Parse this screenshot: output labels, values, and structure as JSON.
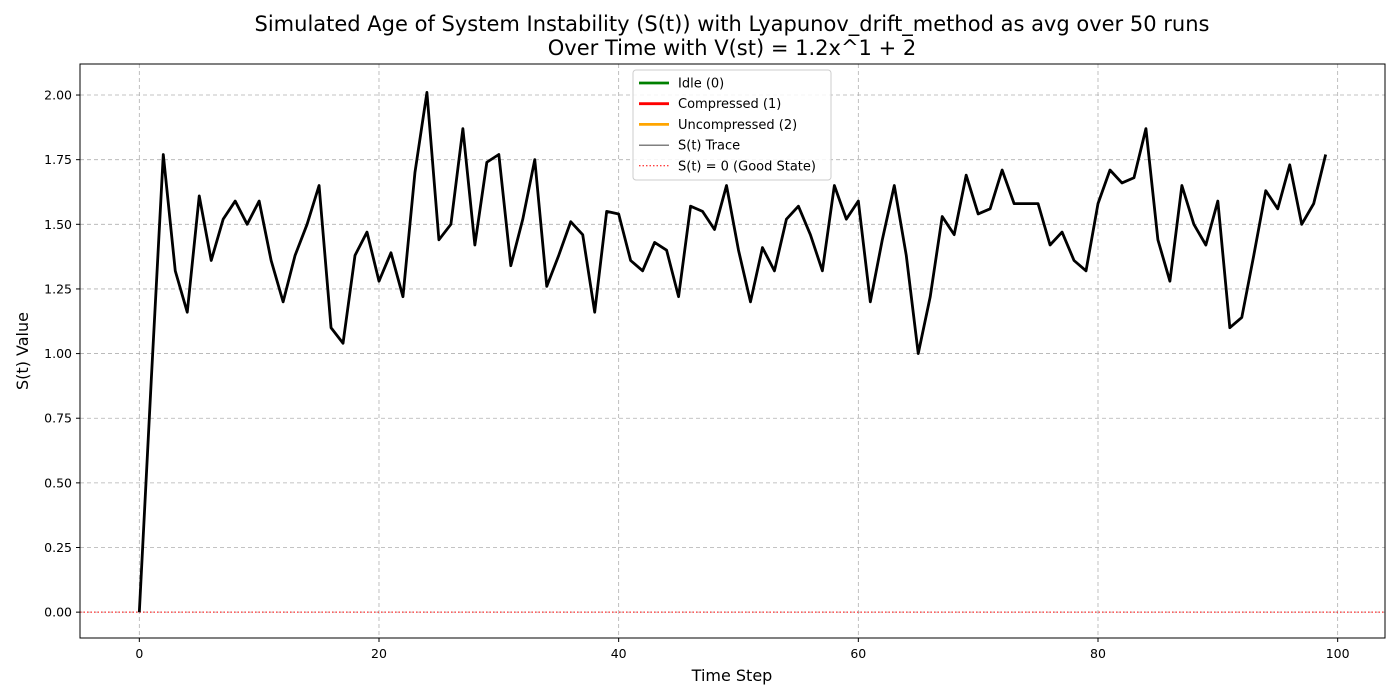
{
  "chart_data": {
    "type": "line",
    "title_line1": "Simulated Age of System Instability (S(t)) with Lyapunov_drift_method as avg over 50 runs",
    "title_line2": "Over Time with V(st) = 1.2x^1 + 2",
    "xlabel": "Time Step",
    "ylabel": "S(t) Value",
    "xlim": [
      -4.95,
      103.95
    ],
    "ylim": [
      -0.1,
      2.12
    ],
    "xticks": [
      0,
      20,
      40,
      60,
      80,
      100
    ],
    "xtick_labels": [
      "0",
      "20",
      "40",
      "60",
      "80",
      "100"
    ],
    "yticks": [
      0.0,
      0.25,
      0.5,
      0.75,
      1.0,
      1.25,
      1.5,
      1.75,
      2.0
    ],
    "ytick_labels": [
      "0.00",
      "0.25",
      "0.50",
      "0.75",
      "1.00",
      "1.25",
      "1.50",
      "1.75",
      "2.00"
    ],
    "grid": true,
    "legend_position": "top-center",
    "legend": [
      {
        "label": "Idle (0)",
        "color": "#008000",
        "style": "solid-thick"
      },
      {
        "label": "Compressed (1)",
        "color": "#ff0000",
        "style": "solid-thick"
      },
      {
        "label": "Uncompressed (2)",
        "color": "#ffa500",
        "style": "solid-thick"
      },
      {
        "label": "S(t) Trace",
        "color": "#000000",
        "style": "solid-thin"
      },
      {
        "label": "S(t) = 0 (Good State)",
        "color": "#ff0000",
        "style": "dotted"
      }
    ],
    "series": [
      {
        "name": "S(t) Trace",
        "color": "#000000",
        "x": [
          0,
          1,
          2,
          3,
          4,
          5,
          6,
          7,
          8,
          9,
          10,
          11,
          12,
          13,
          14,
          15,
          16,
          17,
          18,
          19,
          20,
          21,
          22,
          23,
          24,
          25,
          26,
          27,
          28,
          29,
          30,
          31,
          32,
          33,
          34,
          35,
          36,
          37,
          38,
          39,
          40,
          41,
          42,
          43,
          44,
          45,
          46,
          47,
          48,
          49,
          50,
          51,
          52,
          53,
          54,
          55,
          56,
          57,
          58,
          59,
          60,
          61,
          62,
          63,
          64,
          65,
          66,
          67,
          68,
          69,
          70,
          71,
          72,
          73,
          74,
          75,
          76,
          77,
          78,
          79,
          80,
          81,
          82,
          83,
          84,
          85,
          86,
          87,
          88,
          89,
          90,
          91,
          92,
          93,
          94,
          95,
          96,
          97,
          98,
          99
        ],
        "values": [
          0.0,
          0.9,
          1.77,
          1.32,
          1.16,
          1.61,
          1.36,
          1.52,
          1.59,
          1.5,
          1.59,
          1.36,
          1.2,
          1.38,
          1.5,
          1.65,
          1.1,
          1.04,
          1.38,
          1.47,
          1.28,
          1.39,
          1.22,
          1.7,
          2.01,
          1.44,
          1.5,
          1.87,
          1.42,
          1.74,
          1.77,
          1.34,
          1.52,
          1.75,
          1.26,
          1.38,
          1.51,
          1.46,
          1.16,
          1.55,
          1.54,
          1.36,
          1.32,
          1.43,
          1.4,
          1.22,
          1.57,
          1.55,
          1.48,
          1.65,
          1.4,
          1.2,
          1.41,
          1.32,
          1.52,
          1.57,
          1.46,
          1.32,
          1.65,
          1.52,
          1.59,
          1.2,
          1.44,
          1.65,
          1.38,
          1.0,
          1.22,
          1.53,
          1.46,
          1.69,
          1.54,
          1.56,
          1.71,
          1.58,
          1.58,
          1.58,
          1.42,
          1.47,
          1.36,
          1.32,
          1.58,
          1.71,
          1.66,
          1.68,
          1.87,
          1.44,
          1.28,
          1.65,
          1.5,
          1.42,
          1.59,
          1.1,
          1.14,
          1.38,
          1.63,
          1.56,
          1.73,
          1.5,
          1.58,
          1.77
        ]
      }
    ],
    "reference_line": {
      "y": 0.0,
      "color": "#ff0000",
      "label": "S(t) = 0 (Good State)"
    }
  }
}
